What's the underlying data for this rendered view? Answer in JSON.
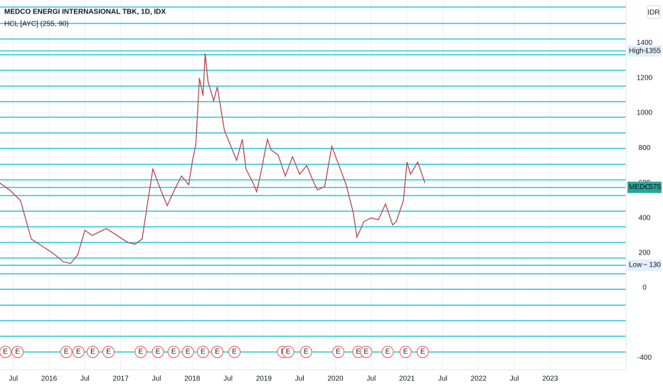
{
  "chart_data": {
    "type": "line",
    "title": "MEDCO ENERGI INTERNASIONAL TBK, 1D, IDX",
    "indicator": "HCL [AYC] (255, 90)",
    "currency": "IDR",
    "xlim": [
      2015.314,
      2024.06
    ],
    "xticks": [
      {
        "value": 2015.5,
        "label": "Jul"
      },
      2016,
      {
        "value": 2016.5,
        "label": "Jul"
      },
      2017,
      {
        "value": 2017.5,
        "label": "Jul"
      },
      2018,
      {
        "value": 2018.5,
        "label": "Jul"
      },
      2019,
      {
        "value": 2019.5,
        "label": "Jul"
      },
      2020,
      {
        "value": 2020.5,
        "label": "Jul"
      },
      2021,
      {
        "value": 2021.5,
        "label": "Jul"
      },
      2022,
      {
        "value": 2022.5,
        "label": "Jul"
      },
      2023
    ],
    "ylim": [
      -467,
      1646
    ],
    "yticks": [
      -400,
      0,
      200,
      400,
      600,
      800,
      1000,
      1200,
      1400
    ],
    "grid": true,
    "series": [
      {
        "name": "MEDC",
        "color": "#b5474a",
        "x": [
          2015.31,
          2015.45,
          2015.6,
          2015.75,
          2015.9,
          2016.05,
          2016.2,
          2016.3,
          2016.4,
          2016.5,
          2016.6,
          2016.8,
          2016.95,
          2017.1,
          2017.2,
          2017.3,
          2017.4,
          2017.45,
          2017.55,
          2017.65,
          2017.75,
          2017.85,
          2017.95,
          2018.0,
          2018.05,
          2018.1,
          2018.15,
          2018.18,
          2018.22,
          2018.3,
          2018.35,
          2018.45,
          2018.55,
          2018.62,
          2018.7,
          2018.75,
          2018.85,
          2018.9,
          2018.95,
          2019.05,
          2019.1,
          2019.2,
          2019.3,
          2019.4,
          2019.5,
          2019.6,
          2019.7,
          2019.75,
          2019.85,
          2019.95,
          2020.05,
          2020.15,
          2020.25,
          2020.3,
          2020.4,
          2020.5,
          2020.6,
          2020.7,
          2020.8,
          2020.85,
          2020.95,
          2021.0,
          2021.05,
          2021.15,
          2021.25
        ],
        "values": [
          600,
          560,
          500,
          280,
          240,
          200,
          150,
          140,
          190,
          330,
          300,
          340,
          300,
          260,
          250,
          280,
          550,
          680,
          570,
          470,
          560,
          640,
          590,
          720,
          820,
          1200,
          1100,
          1340,
          1180,
          1070,
          1150,
          900,
          800,
          730,
          850,
          680,
          600,
          550,
          640,
          850,
          790,
          760,
          640,
          750,
          650,
          700,
          600,
          560,
          580,
          810,
          700,
          590,
          430,
          290,
          380,
          400,
          390,
          480,
          360,
          380,
          500,
          720,
          650,
          720,
          600
        ]
      }
    ],
    "levels": [
      1606,
      1512,
      1423,
      1333,
      1244,
      1154,
      1065,
      976,
      886,
      797,
      707,
      618,
      528,
      439,
      350,
      260,
      171,
      81,
      -8,
      -98,
      -187,
      -276,
      -366
    ],
    "level_color": "#26c6da",
    "price_labels": [
      {
        "label": "High",
        "value": 1355,
        "bg": "#e3effa",
        "fg": "#131722"
      },
      {
        "label": "MEDC",
        "value": 575,
        "bg": "#26a69a",
        "fg": "#ffffff"
      },
      {
        "label": "Low",
        "value": 130,
        "bg": "#e3effa",
        "fg": "#131722"
      }
    ],
    "earnings_label": "E",
    "earnings_x": [
      2015.39,
      2015.56,
      2016.24,
      2016.41,
      2016.61,
      2016.83,
      2017.28,
      2017.52,
      2017.74,
      2017.94,
      2018.15,
      2018.35,
      2018.59,
      2019.27,
      2019.34,
      2019.59,
      2020.04,
      2020.32,
      2020.43,
      2020.73,
      2020.98,
      2021.22
    ]
  }
}
